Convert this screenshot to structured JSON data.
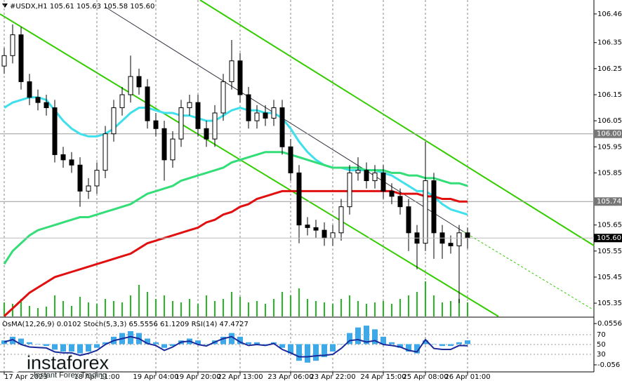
{
  "chart_data": [
    {
      "type": "candlestick",
      "title": "#USDX,H1  105.61 105.63 105.58 105.60",
      "categories": [
        "17 Apr 2023",
        null,
        null,
        null,
        null,
        null,
        null,
        null,
        null,
        null,
        null,
        "18 Apr 11:00",
        null,
        null,
        null,
        null,
        null,
        null,
        "19 Apr 04:00",
        null,
        null,
        null,
        null,
        "19 Apr 20:00",
        null,
        null,
        null,
        null,
        "22 Apr 13:00",
        null,
        null,
        null,
        null,
        null,
        "23 Apr 06:00",
        null,
        null,
        null,
        null,
        "23 Apr 22:00",
        null,
        null,
        null,
        null,
        null,
        "24 Apr 15:00",
        null,
        null,
        null,
        null,
        "25 Apr 08:00",
        null,
        null,
        null,
        null,
        "26 Apr 01:00"
      ],
      "open": [
        106.26,
        106.3,
        106.38,
        106.2,
        106.14,
        106.12,
        106.1,
        105.92,
        105.9,
        105.88,
        105.78,
        105.8,
        105.86,
        106.0,
        106.1,
        106.15,
        106.22,
        106.18,
        106.05,
        106.02,
        105.9,
        105.98,
        106.1,
        106.12,
        106.02,
        105.98,
        106.08,
        106.2,
        106.28,
        106.15,
        106.05,
        106.08,
        106.06,
        106.1,
        105.95,
        105.85,
        105.65,
        105.64,
        105.63,
        105.6,
        105.62,
        105.72,
        105.85,
        105.86,
        105.82,
        105.85,
        105.78,
        105.76,
        105.72,
        105.62,
        105.58,
        105.82,
        105.62,
        105.58,
        105.57,
        105.62
      ],
      "high": [
        106.33,
        106.42,
        106.41,
        106.23,
        106.17,
        106.15,
        106.13,
        105.95,
        105.93,
        105.91,
        105.83,
        105.89,
        106.03,
        106.13,
        106.18,
        106.3,
        106.25,
        106.21,
        106.08,
        106.05,
        106.01,
        106.13,
        106.15,
        106.15,
        106.05,
        106.11,
        106.23,
        106.36,
        106.31,
        106.18,
        106.11,
        106.11,
        106.13,
        106.13,
        105.98,
        105.88,
        105.68,
        105.67,
        105.66,
        105.65,
        105.75,
        105.88,
        105.91,
        105.89,
        105.88,
        105.88,
        105.81,
        105.79,
        105.75,
        105.65,
        105.97,
        105.85,
        105.65,
        105.61,
        105.65,
        105.64
      ],
      "low": [
        106.23,
        106.27,
        106.17,
        106.11,
        106.09,
        106.07,
        105.89,
        105.87,
        105.85,
        105.72,
        105.75,
        105.77,
        105.83,
        105.97,
        106.07,
        106.12,
        106.15,
        106.02,
        105.99,
        105.82,
        105.87,
        105.95,
        106.07,
        105.99,
        105.95,
        105.95,
        106.05,
        106.17,
        106.12,
        106.02,
        106.02,
        106.03,
        106.03,
        105.92,
        105.82,
        105.58,
        105.61,
        105.6,
        105.57,
        105.57,
        105.59,
        105.69,
        105.82,
        105.79,
        105.79,
        105.75,
        105.73,
        105.69,
        105.55,
        105.48,
        105.55,
        105.52,
        105.52,
        105.54,
        105.35,
        105.56
      ],
      "close": [
        106.3,
        106.38,
        106.2,
        106.14,
        106.12,
        106.1,
        105.92,
        105.9,
        105.88,
        105.78,
        105.8,
        105.86,
        106.0,
        106.1,
        106.15,
        106.22,
        106.18,
        106.05,
        106.02,
        105.9,
        105.98,
        106.1,
        106.12,
        106.02,
        105.98,
        106.08,
        106.2,
        106.28,
        106.15,
        106.05,
        106.08,
        106.06,
        106.1,
        105.95,
        105.85,
        105.65,
        105.64,
        105.63,
        105.6,
        105.62,
        105.72,
        105.85,
        105.86,
        105.82,
        105.85,
        105.78,
        105.76,
        105.72,
        105.62,
        105.58,
        105.82,
        105.62,
        105.58,
        105.57,
        105.62,
        105.6
      ],
      "candle_color": "#000000",
      "series": [
        {
          "color": "#3fe0ec",
          "values": [
            106.1,
            106.12,
            106.13,
            106.14,
            106.14,
            106.13,
            106.09,
            106.05,
            106.02,
            106.0,
            105.99,
            105.99,
            106.0,
            106.02,
            106.05,
            106.08,
            106.1,
            106.1,
            106.09,
            106.08,
            106.08,
            106.07,
            106.07,
            106.06,
            106.05,
            106.05,
            106.07,
            106.09,
            106.1,
            106.09,
            106.09,
            106.08,
            106.08,
            106.06,
            106.02,
            105.97,
            105.93,
            105.9,
            105.88,
            105.87,
            105.87,
            105.86,
            105.86,
            105.86,
            105.86,
            105.85,
            105.84,
            105.82,
            105.8,
            105.78,
            105.78,
            105.76,
            105.73,
            105.71,
            105.7,
            105.69
          ]
        },
        {
          "color": "#33dd77",
          "values": [
            105.5,
            105.55,
            105.58,
            105.61,
            105.63,
            105.64,
            105.65,
            105.66,
            105.67,
            105.68,
            105.68,
            105.69,
            105.7,
            105.71,
            105.72,
            105.73,
            105.75,
            105.77,
            105.78,
            105.79,
            105.8,
            105.82,
            105.83,
            105.84,
            105.85,
            105.86,
            105.87,
            105.89,
            105.9,
            105.91,
            105.92,
            105.93,
            105.93,
            105.93,
            105.92,
            105.91,
            105.9,
            105.89,
            105.88,
            105.87,
            105.87,
            105.87,
            105.87,
            105.86,
            105.86,
            105.86,
            105.85,
            105.85,
            105.84,
            105.84,
            105.83,
            105.83,
            105.82,
            105.81,
            105.81,
            105.8
          ]
        },
        {
          "color": "#e01010",
          "values": [
            105.3,
            105.33,
            105.36,
            105.39,
            105.41,
            105.43,
            105.45,
            105.46,
            105.47,
            105.48,
            105.49,
            105.5,
            105.51,
            105.52,
            105.53,
            105.54,
            105.56,
            105.58,
            105.59,
            105.6,
            105.61,
            105.62,
            105.63,
            105.64,
            105.66,
            105.67,
            105.69,
            105.7,
            105.72,
            105.73,
            105.75,
            105.76,
            105.77,
            105.78,
            105.78,
            105.78,
            105.78,
            105.78,
            105.78,
            105.78,
            105.78,
            105.78,
            105.78,
            105.78,
            105.78,
            105.78,
            105.78,
            105.77,
            105.77,
            105.77,
            105.76,
            105.76,
            105.75,
            105.75,
            105.74,
            105.74
          ]
        }
      ],
      "volumes": [
        20,
        18,
        25,
        15,
        12,
        14,
        30,
        22,
        15,
        28,
        20,
        18,
        25,
        22,
        20,
        30,
        45,
        35,
        25,
        30,
        22,
        20,
        25,
        18,
        30,
        22,
        25,
        35,
        28,
        20,
        22,
        18,
        25,
        35,
        30,
        40,
        25,
        22,
        20,
        18,
        25,
        30,
        22,
        18,
        20,
        22,
        18,
        25,
        30,
        35,
        50,
        30,
        20,
        22,
        25,
        20
      ],
      "volume_color": "#22bb22",
      "volume_lim": [
        0,
        100
      ],
      "ylim": [
        105.299,
        106.492
      ],
      "yticks": [
        106.46,
        106.35,
        106.25,
        106.15,
        106.05,
        105.95,
        105.85,
        105.65,
        105.55,
        105.45,
        105.35
      ],
      "price_lines": [
        {
          "value": 106,
          "label": "106.00"
        },
        {
          "value": 105.74,
          "label": "105.74"
        }
      ],
      "last_price": {
        "value": 105.6,
        "label": "105.60"
      }
    },
    {
      "type": "indicator",
      "title": "OsMA(12,26,9) 0.0102  Stoch(5,3,3) 65.5556 61.1209  RSI(14) 47.4727",
      "histogram": {
        "color": "#3fa9e8",
        "values": [
          0.01,
          0.02,
          0.015,
          0.005,
          0,
          -0.005,
          -0.015,
          -0.02,
          -0.02,
          -0.025,
          -0.02,
          -0.01,
          0.005,
          0.02,
          0.03,
          0.035,
          0.03,
          0.015,
          0.005,
          -0.01,
          -0.005,
          0.01,
          0.015,
          0.01,
          0,
          0.01,
          0.02,
          0.03,
          0.02,
          0.005,
          0.005,
          0,
          0.005,
          -0.01,
          -0.025,
          -0.045,
          -0.05,
          -0.045,
          -0.035,
          -0.02,
          0,
          0.03,
          0.045,
          0.05,
          0.04,
          0.02,
          0.005,
          -0.01,
          -0.02,
          -0.025,
          0.01,
          0,
          -0.005,
          -0.005,
          0.005,
          0.0102
        ]
      },
      "line": {
        "color": "#1a2a9a",
        "axis": "y2",
        "values": [
          55,
          60,
          50,
          45,
          44,
          43,
          35,
          33,
          33,
          28,
          32,
          38,
          50,
          58,
          62,
          66,
          62,
          52,
          48,
          38,
          45,
          55,
          57,
          50,
          47,
          55,
          62,
          66,
          55,
          48,
          50,
          48,
          52,
          40,
          33,
          25,
          25,
          27,
          28,
          30,
          42,
          58,
          60,
          55,
          58,
          50,
          48,
          45,
          38,
          35,
          60,
          42,
          40,
          40,
          48,
          47.4727
        ]
      },
      "ylim": [
        -0.075,
        0.071
      ],
      "yticks": [
        0.0556,
        -0.056
      ],
      "y2lim": [
        -5.7,
        104.3
      ],
      "y2ticks": [
        70,
        50,
        30
      ]
    }
  ],
  "watermark": {
    "brand": "instaforex",
    "tagline": "Instant Forex Trading"
  }
}
